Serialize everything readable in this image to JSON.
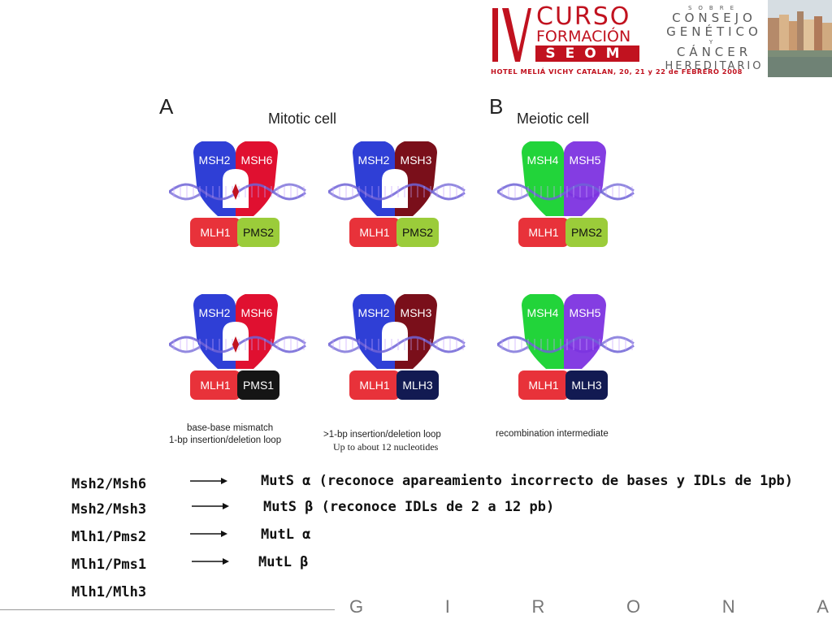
{
  "header": {
    "roman": "IV",
    "curso": "CURSO",
    "formacion": "FORMACIÓN",
    "seom": "SEOM",
    "consejo_sobre": "SOBRE",
    "consejo_l1": "CONSEJO",
    "consejo_l2": "GENÉTICO",
    "consejo_y": "Y",
    "consejo_l3": "CÁNCER",
    "consejo_l4": "HEREDITARIO",
    "hotel": "HOTEL MELIÁ VICHY CATALAN, 20, 21 y 22 de FEBRERO 2008"
  },
  "panels": {
    "a_letter": "A",
    "a_title": "Mitotic cell",
    "b_letter": "B",
    "b_title": "Meiotic cell"
  },
  "complexes": [
    {
      "top_left": "MSH2",
      "top_right": "MSH6",
      "bot_left": "MLH1",
      "bot_right": "PMS2"
    },
    {
      "top_left": "MSH2",
      "top_right": "MSH3",
      "bot_left": "MLH1",
      "bot_right": "PMS2"
    },
    {
      "top_left": "MSH4",
      "top_right": "MSH5",
      "bot_left": "MLH1",
      "bot_right": "PMS2"
    },
    {
      "top_left": "MSH2",
      "top_right": "MSH6",
      "bot_left": "MLH1",
      "bot_right": "PMS1"
    },
    {
      "top_left": "MSH2",
      "top_right": "MSH3",
      "bot_left": "MLH1",
      "bot_right": "MLH3"
    },
    {
      "top_left": "MSH4",
      "top_right": "MSH5",
      "bot_left": "MLH1",
      "bot_right": "MLH3"
    }
  ],
  "colors": {
    "msh2": "#2f3fd6",
    "msh6": "#e01030",
    "msh3": "#7a0f1a",
    "msh4": "#22d43a",
    "msh5": "#7a2ce0",
    "mlh1": "#e8323a",
    "pms2": "#9bcc3a",
    "pms1": "#151515",
    "mlh3": "#121a52",
    "dna": "#6f63d6",
    "accent_red": "#c1121f"
  },
  "captions": {
    "c1_l1": "base-base mismatch",
    "c1_l2": "1-bp insertion/deletion loop",
    "c2_l1": ">1-bp insertion/deletion loop",
    "c2_l2": "Up to about 12 nucleotides",
    "c3_l1": "recombination intermediate"
  },
  "legend": [
    {
      "left": "Msh2/Msh6",
      "right": "MutS α (reconoce apareamiento incorrecto de bases y IDLs de 1pb)"
    },
    {
      "left": "Msh2/Msh3",
      "right": "MutS β (reconoce IDLs de 2 a 12 pb)"
    },
    {
      "left": "Mlh1/Pms2",
      "right": "MutL α"
    },
    {
      "left": "Mlh1/Pms1",
      "right": "MutL β"
    },
    {
      "left": "Mlh1/Mlh3",
      "right": ""
    }
  ],
  "footer": {
    "letters": [
      "G",
      "I",
      "R",
      "O",
      "N",
      "A"
    ]
  }
}
